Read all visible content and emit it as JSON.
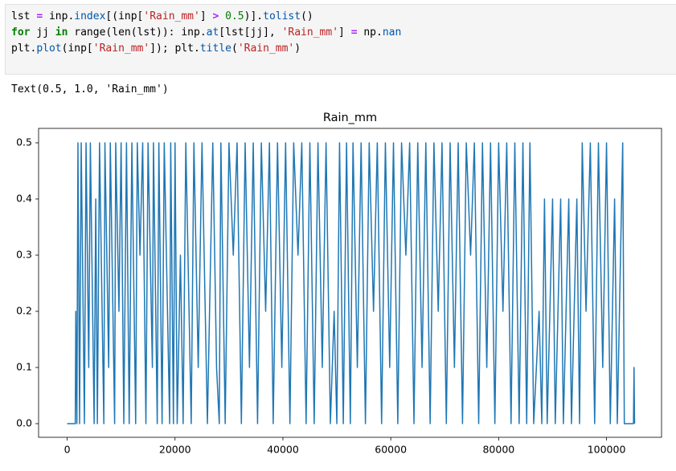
{
  "code": {
    "lines": [
      [
        "lst ",
        "=",
        " inp.",
        "index",
        "[(inp[",
        "'Rain_mm'",
        "] ",
        ">",
        " ",
        "0.5",
        ")].",
        "tolist",
        "()"
      ],
      [
        "for",
        " jj ",
        "in",
        " range(len(lst)): inp.",
        "at",
        "[lst[jj], ",
        "'Rain_mm'",
        "] ",
        "=",
        " np.",
        "nan"
      ],
      [
        "plt.",
        "plot",
        "(inp[",
        "'Rain_mm'",
        "]); plt.",
        "title",
        "(",
        "'Rain_mm'",
        ")"
      ]
    ]
  },
  "output": "Text(0.5, 1.0, 'Rain_mm')",
  "chart_data": {
    "type": "line",
    "title": "Rain_mm",
    "x": [
      0,
      1500,
      1600,
      1800,
      2000,
      2300,
      2600,
      3200,
      3500,
      4000,
      4300,
      5000,
      5300,
      5600,
      6000,
      6800,
      7000,
      7700,
      8000,
      8800,
      9000,
      9600,
      10000,
      10500,
      11000,
      11500,
      12000,
      12700,
      13000,
      13500,
      14000,
      14600,
      15000,
      15800,
      16000,
      16700,
      17000,
      17600,
      18000,
      19000,
      19200,
      19700,
      20000,
      20400,
      21000,
      21500,
      22000,
      23000,
      23500,
      24300,
      25000,
      26000,
      27000,
      27700,
      28200,
      28500,
      29300,
      30000,
      30800,
      31500,
      32300,
      33000,
      33800,
      34500,
      35300,
      36000,
      36800,
      37500,
      38200,
      39000,
      39800,
      40500,
      41300,
      42000,
      42800,
      43500,
      44300,
      45000,
      45800,
      46500,
      47300,
      48000,
      48800,
      49500,
      50000,
      50500,
      51200,
      51800,
      52500,
      53000,
      53800,
      54500,
      55300,
      56000,
      56800,
      57500,
      58300,
      59000,
      59800,
      60500,
      61300,
      62000,
      62800,
      63500,
      64300,
      65000,
      65800,
      66500,
      67300,
      68000,
      68800,
      69500,
      70300,
      71000,
      71800,
      72500,
      73300,
      74000,
      74800,
      75500,
      76300,
      77000,
      77800,
      78500,
      79300,
      80000,
      80800,
      81500,
      82300,
      83000,
      83800,
      84500,
      85200,
      85800,
      86500,
      87500,
      88000,
      88500,
      89000,
      90000,
      90500,
      91500,
      92000,
      93000,
      93500,
      94500,
      95000,
      95500,
      96200,
      97000,
      97800,
      98500,
      99300,
      100000,
      100700,
      101500,
      102000,
      103000,
      103300,
      105000,
      105100,
      105200
    ],
    "series": [
      {
        "color": "#1f77b4",
        "values": [
          0,
          0,
          0.2,
          0,
          0.5,
          0,
          0.5,
          0,
          0.5,
          0.1,
          0.5,
          0,
          0.4,
          0,
          0.5,
          0,
          0.5,
          0.1,
          0.5,
          0,
          0.5,
          0.2,
          0.5,
          0,
          0.5,
          0,
          0.5,
          0,
          0.5,
          0.3,
          0.5,
          0,
          0.5,
          0.1,
          0.5,
          0,
          0.5,
          0,
          0.5,
          0,
          0.5,
          0,
          0.5,
          0,
          0.3,
          0,
          0.5,
          0,
          0.5,
          0.1,
          0.5,
          0,
          0.5,
          0.1,
          0,
          0.5,
          0,
          0.5,
          0.3,
          0.5,
          0,
          0.5,
          0.1,
          0.5,
          0,
          0.5,
          0.2,
          0.5,
          0,
          0.5,
          0.1,
          0.5,
          0,
          0.5,
          0.3,
          0.5,
          0,
          0.5,
          0,
          0.5,
          0.1,
          0.5,
          0,
          0.2,
          0,
          0.5,
          0,
          0.5,
          0,
          0.5,
          0.1,
          0.5,
          0,
          0.5,
          0.2,
          0.5,
          0,
          0.5,
          0.1,
          0.5,
          0,
          0.5,
          0.3,
          0.5,
          0,
          0.5,
          0.1,
          0.5,
          0,
          0.5,
          0.2,
          0.5,
          0,
          0.5,
          0.1,
          0.5,
          0,
          0.5,
          0.3,
          0.5,
          0,
          0.5,
          0.1,
          0.5,
          0,
          0.5,
          0.2,
          0.5,
          0,
          0.5,
          0,
          0.5,
          0,
          0.5,
          0,
          0.2,
          0,
          0.4,
          0,
          0.4,
          0,
          0.4,
          0,
          0.4,
          0,
          0.4,
          0,
          0.5,
          0.2,
          0.5,
          0,
          0.5,
          0.1,
          0.5,
          0,
          0.4,
          0,
          0.5,
          0,
          0,
          0.1,
          0
        ]
      }
    ],
    "xlim": [
      -5300,
      110200
    ],
    "ylim": [
      -0.0243,
      0.5257
    ],
    "xticks": [
      0,
      20000,
      40000,
      60000,
      80000,
      100000
    ],
    "yticks": [
      {
        "value": 0,
        "label": "0.0"
      },
      0.1,
      0.2,
      0.3,
      0.4,
      0.5
    ]
  }
}
